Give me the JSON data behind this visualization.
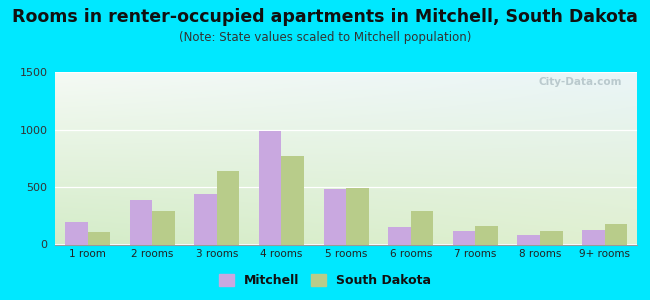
{
  "title": "Rooms in renter-occupied apartments in Mitchell, South Dakota",
  "subtitle": "(Note: State values scaled to Mitchell population)",
  "categories": [
    "1 room",
    "2 rooms",
    "3 rooms",
    "4 rooms",
    "5 rooms",
    "6 rooms",
    "7 rooms",
    "8 rooms",
    "9+ rooms"
  ],
  "mitchell_values": [
    200,
    390,
    440,
    990,
    480,
    155,
    120,
    80,
    130
  ],
  "sd_values": [
    110,
    290,
    640,
    770,
    490,
    295,
    165,
    120,
    175
  ],
  "mitchell_color": "#c9a8e0",
  "sd_color": "#b8cc8a",
  "ylim": [
    0,
    1500
  ],
  "yticks": [
    0,
    500,
    1000,
    1500
  ],
  "background_outer": "#00e8ff",
  "title_fontsize": 12.5,
  "subtitle_fontsize": 8.5,
  "watermark_text": "City-Data.com"
}
